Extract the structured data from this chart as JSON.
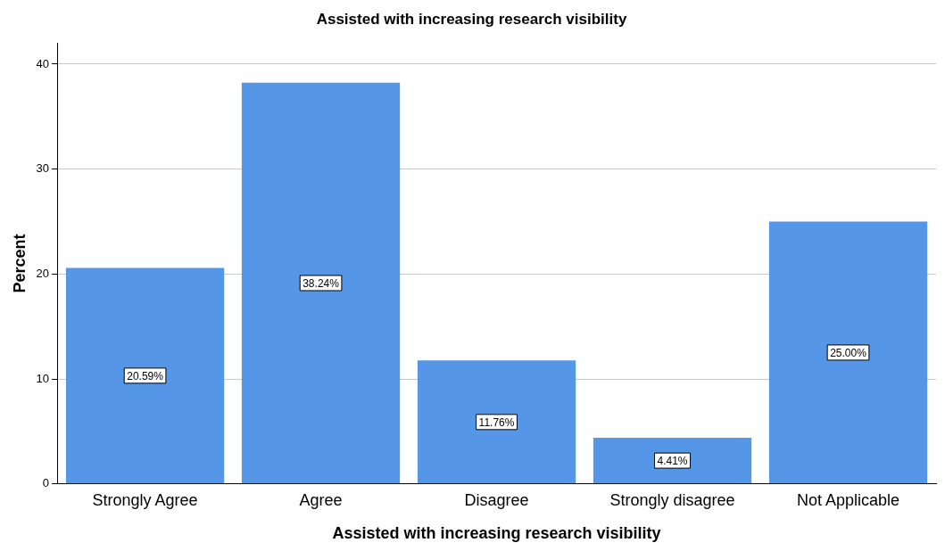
{
  "chart_data": {
    "type": "bar",
    "title": "Assisted with increasing research visibility",
    "xlabel": "Assisted with increasing research visibility",
    "ylabel": "Percent",
    "categories": [
      "Strongly Agree",
      "Agree",
      "Disagree",
      "Strongly disagree",
      "Not Applicable"
    ],
    "values": [
      20.59,
      38.24,
      11.76,
      4.41,
      25.0
    ],
    "value_labels": [
      "20.59%",
      "38.24%",
      "11.76%",
      "4.41%",
      "25.00%"
    ],
    "color": "#5596e6",
    "ylim": [
      0,
      42
    ],
    "yticks": [
      0,
      10,
      20,
      30,
      40
    ],
    "grid": "y",
    "legend": false
  }
}
